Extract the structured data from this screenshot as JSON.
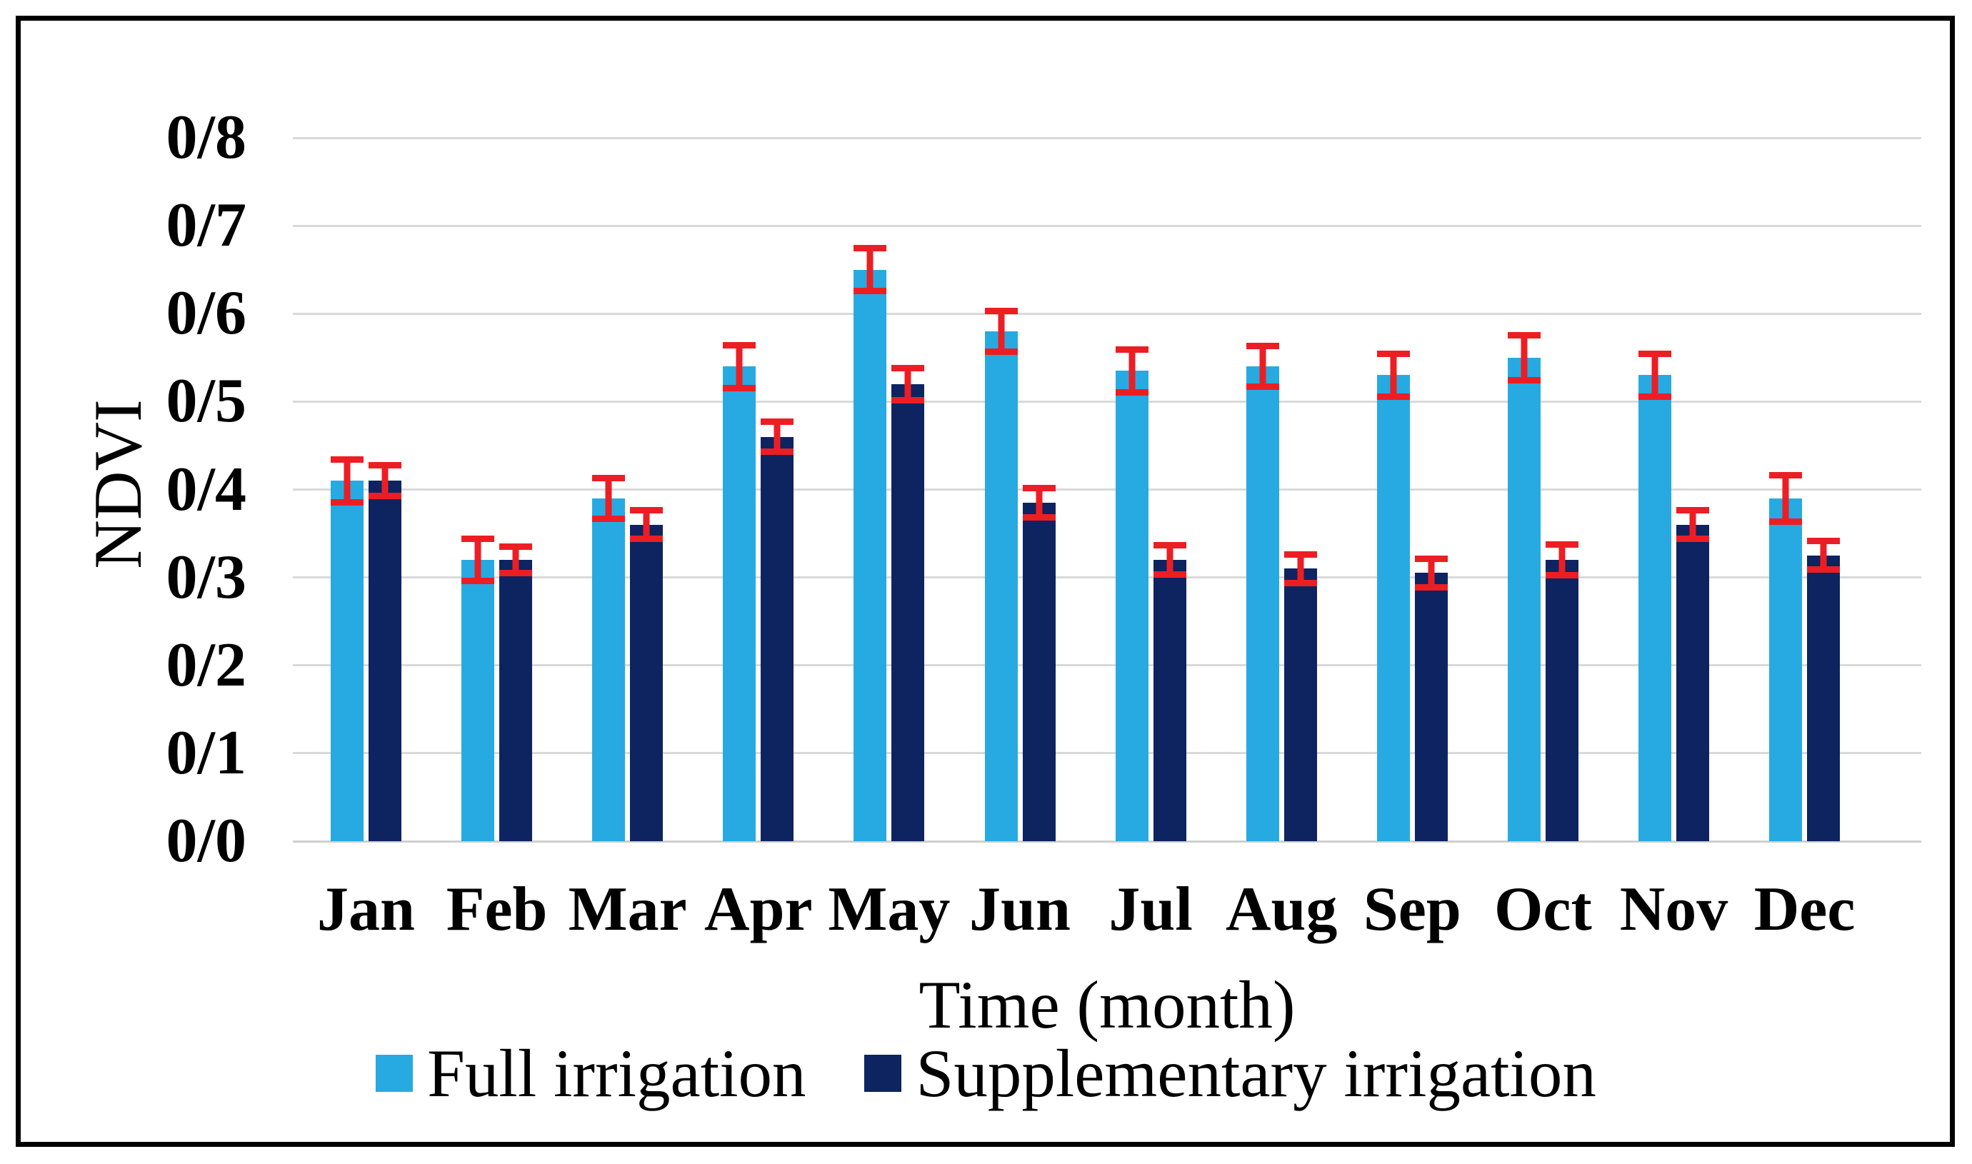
{
  "figure": {
    "background_color": "#FFFFFF",
    "border_color": "#000000"
  },
  "chart_data": {
    "type": "bar",
    "title": "",
    "xlabel": "Time (month)",
    "ylabel": "NDVI",
    "categories": [
      "Jan",
      "Feb",
      "Mar",
      "Apr",
      "May",
      "Jun",
      "Jul",
      "Aug",
      "Sep",
      "Oct",
      "Nov",
      "Dec"
    ],
    "y_tick_labels": [
      "0/0",
      "0/1",
      "0/2",
      "0/3",
      "0/4",
      "0/5",
      "0/6",
      "0/7",
      "0/8"
    ],
    "y_tick_values": [
      0.0,
      0.1,
      0.2,
      0.3,
      0.4,
      0.5,
      0.6,
      0.7,
      0.8
    ],
    "ylim": [
      0,
      0.8
    ],
    "grid": true,
    "grid_color": "#D9D9D9",
    "legend_position": "bottom",
    "error_bar_color": "#EC1E24",
    "series": [
      {
        "name": "Full irrigation",
        "color": "#27AAE1",
        "values": [
          0.41,
          0.32,
          0.39,
          0.54,
          0.65,
          0.58,
          0.535,
          0.54,
          0.53,
          0.55,
          0.53,
          0.39
        ],
        "errors": [
          0.028,
          0.028,
          0.027,
          0.028,
          0.028,
          0.027,
          0.028,
          0.027,
          0.028,
          0.029,
          0.028,
          0.03
        ]
      },
      {
        "name": "Supplementary irrigation",
        "color": "#0D2461",
        "values": [
          0.41,
          0.32,
          0.36,
          0.46,
          0.52,
          0.385,
          0.32,
          0.31,
          0.305,
          0.32,
          0.36,
          0.325
        ],
        "errors": [
          0.021,
          0.019,
          0.02,
          0.021,
          0.022,
          0.02,
          0.02,
          0.02,
          0.02,
          0.021,
          0.02,
          0.02
        ]
      }
    ]
  }
}
